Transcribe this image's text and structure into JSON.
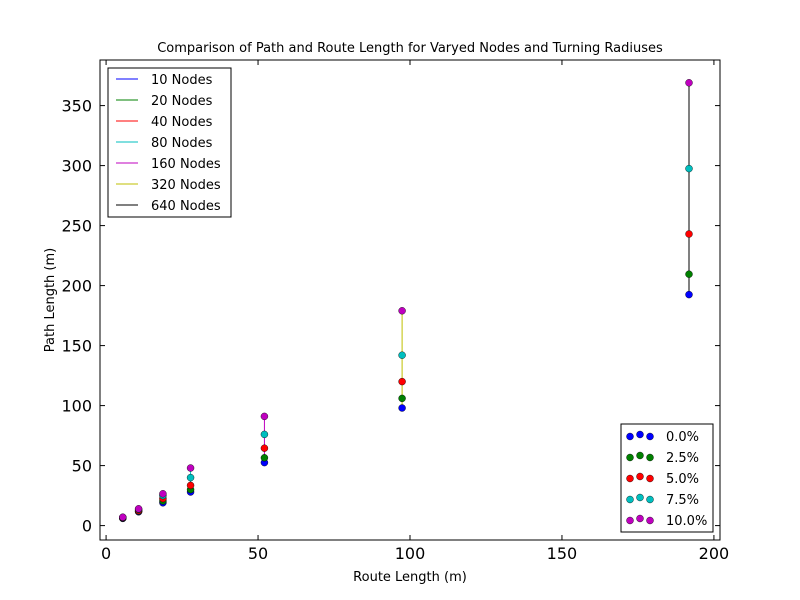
{
  "chart_data": {
    "type": "scatter",
    "title": "Comparison of Path and Route Length for Varyed Nodes and Turning Radiuses",
    "xlabel": "Route Length (m)",
    "ylabel": "Path Length (m)",
    "xlim": [
      -2,
      202
    ],
    "ylim": [
      -12,
      388
    ],
    "xticks": [
      0,
      50,
      100,
      150,
      200
    ],
    "yticks": [
      0,
      50,
      100,
      150,
      200,
      250,
      300,
      350
    ],
    "grid": false,
    "route_lengths": [
      5.5,
      10.7,
      18.7,
      27.8,
      52.1,
      97.4,
      191.8
    ],
    "line_series": [
      {
        "name": "10 Nodes",
        "color": "#0000ff",
        "point_index": 0
      },
      {
        "name": "20 Nodes",
        "color": "#008000",
        "point_index": 1
      },
      {
        "name": "40 Nodes",
        "color": "#ff0000",
        "point_index": 2
      },
      {
        "name": "80 Nodes",
        "color": "#00bfbf",
        "point_index": 3
      },
      {
        "name": "160 Nodes",
        "color": "#bf00bf",
        "point_index": 4
      },
      {
        "name": "320 Nodes",
        "color": "#bfbf00",
        "point_index": 5
      },
      {
        "name": "640 Nodes",
        "color": "#000000",
        "point_index": 6
      }
    ],
    "point_series": [
      {
        "name": "0.0%",
        "color": "#0000ff",
        "values": [
          6.0,
          11.5,
          19.0,
          28.0,
          52.5,
          98.0,
          192.5
        ]
      },
      {
        "name": "2.5%",
        "color": "#008000",
        "values": [
          6.3,
          12.0,
          20.5,
          30.0,
          56.5,
          106.0,
          209.5
        ]
      },
      {
        "name": "5.0%",
        "color": "#ff0000",
        "values": [
          6.5,
          12.5,
          22.5,
          33.5,
          64.5,
          120.0,
          243.0
        ]
      },
      {
        "name": "7.5%",
        "color": "#00bfbf",
        "values": [
          6.8,
          13.5,
          25.0,
          40.0,
          76.0,
          142.0,
          297.5
        ]
      },
      {
        "name": "10.0%",
        "color": "#bf00bf",
        "values": [
          7.0,
          14.0,
          26.5,
          48.0,
          91.0,
          179.0,
          369.0
        ]
      }
    ],
    "legend_upper": "top-left",
    "legend_lower": "bottom-right"
  }
}
